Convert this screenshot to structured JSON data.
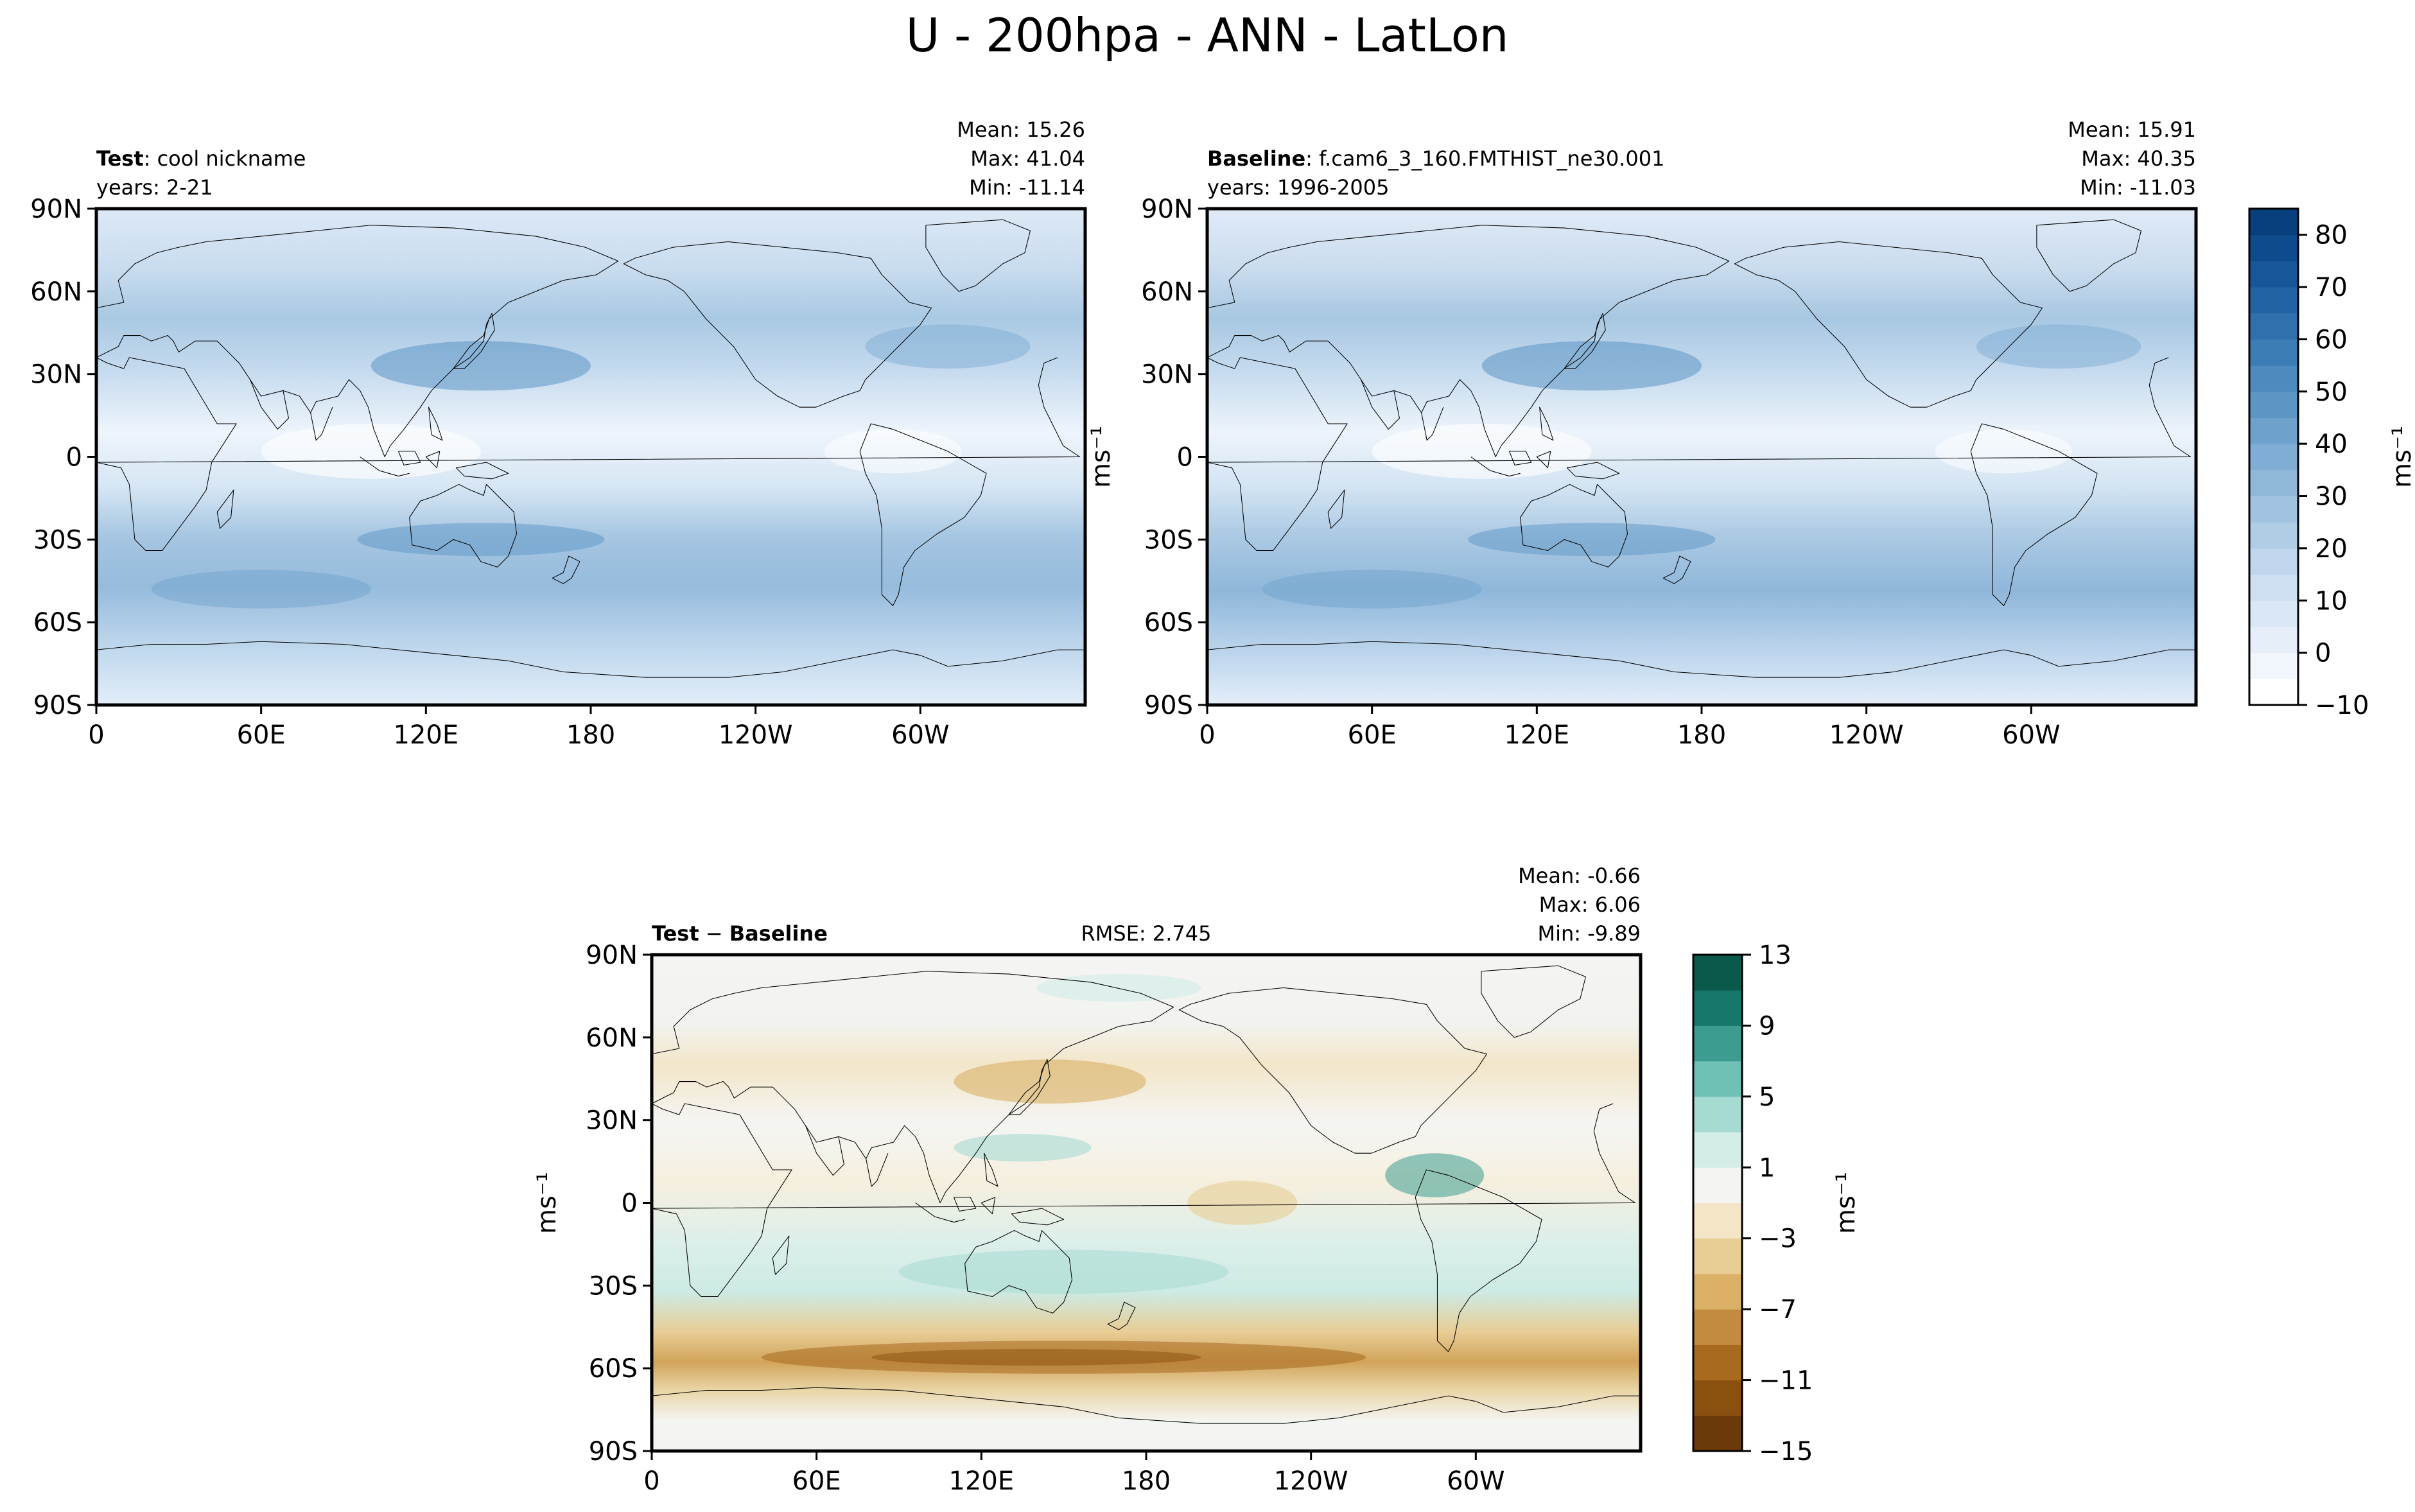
{
  "figure_title": "U - 200hpa - ANN - LatLon",
  "chart_data": [
    {
      "type": "heatmap",
      "panel": "test",
      "label_bold": "Test",
      "label_text": ": cool nickname",
      "years": "years: 2-21",
      "stats": [
        "Mean: 15.26",
        "Max: 41.04",
        "Min: -11.14"
      ],
      "ylabel": "ms⁻¹",
      "lon_ticks": [
        "0",
        "60E",
        "120E",
        "180",
        "120W",
        "60W"
      ],
      "lat_ticks": [
        "90N",
        "60N",
        "30N",
        "0",
        "30S",
        "60S",
        "90S"
      ],
      "lat_range": [
        -90,
        90
      ],
      "lon_range": [
        0,
        360
      ],
      "colormap": "Blues"
    },
    {
      "type": "heatmap",
      "panel": "baseline",
      "label_bold": "Baseline",
      "label_text": ": f.cam6_3_160.FMTHIST_ne30.001",
      "years": "years: 1996-2005",
      "stats": [
        "Mean: 15.91",
        "Max: 40.35",
        "Min: -11.03"
      ],
      "lon_ticks": [
        "0",
        "60E",
        "120E",
        "180",
        "120W",
        "60W"
      ],
      "lat_ticks": [
        "90N",
        "60N",
        "30N",
        "0",
        "30S",
        "60S",
        "90S"
      ],
      "lat_range": [
        -90,
        90
      ],
      "lon_range": [
        0,
        360
      ],
      "colorbar": {
        "label": "ms⁻¹",
        "levels": [
          -10,
          -5,
          0,
          5,
          10,
          15,
          20,
          25,
          30,
          35,
          40,
          45,
          50,
          55,
          60,
          65,
          70,
          75,
          80,
          85
        ],
        "tick_labels": [
          "−10",
          "0",
          "10",
          "20",
          "30",
          "40",
          "50",
          "60",
          "70",
          "80"
        ],
        "tick_values": [
          -10,
          0,
          10,
          20,
          30,
          40,
          50,
          60,
          70,
          80
        ],
        "colors": [
          "#ffffff",
          "#f1f6fc",
          "#e6eff9",
          "#dae7f5",
          "#cddff1",
          "#bfd6ec",
          "#b0cde6",
          "#a1c3e0",
          "#90b8da",
          "#7fadd3",
          "#6ea2cc",
          "#5d96c5",
          "#4d8abe",
          "#3d7db6",
          "#2f70ad",
          "#2263a3",
          "#175799",
          "#0e4b8c",
          "#08407d"
        ]
      }
    },
    {
      "type": "heatmap",
      "panel": "difference",
      "label": "Test − Baseline",
      "label_bold_a": "Test",
      "label_sep": " − ",
      "label_bold_b": "Baseline",
      "rmse": "RMSE: 2.745",
      "stats": [
        "Mean: -0.66",
        "Max:  6.06",
        "Min: -9.89"
      ],
      "ylabel": "ms⁻¹",
      "lon_ticks": [
        "0",
        "60E",
        "120E",
        "180",
        "120W",
        "60W"
      ],
      "lat_ticks": [
        "90N",
        "60N",
        "30N",
        "0",
        "30S",
        "60S",
        "90S"
      ],
      "lat_range": [
        -90,
        90
      ],
      "lon_range": [
        0,
        360
      ],
      "colorbar": {
        "label": "ms⁻¹",
        "levels": [
          -15,
          -13,
          -11,
          -9,
          -7,
          -5,
          -3,
          -1,
          1,
          3,
          5,
          7,
          9,
          11,
          13
        ],
        "tick_labels": [
          "−15",
          "−11",
          "−7",
          "−3",
          "1",
          "5",
          "9",
          "13"
        ],
        "tick_values": [
          -15,
          -11,
          -7,
          -3,
          1,
          5,
          9,
          13
        ],
        "colors": [
          "#6b3a0b",
          "#8a500f",
          "#a86a1f",
          "#c38b3f",
          "#d9b066",
          "#e8cd95",
          "#f3e5c6",
          "#f4f5f3",
          "#d4ede9",
          "#a6dbd2",
          "#6fc0b5",
          "#3d9c90",
          "#18776b",
          "#0a5a4c"
        ]
      }
    }
  ]
}
